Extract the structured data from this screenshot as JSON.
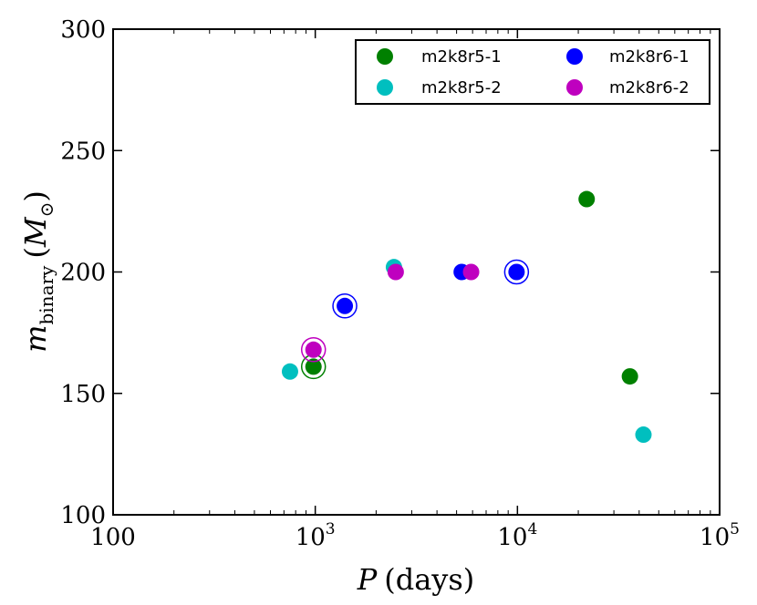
{
  "chart_data": {
    "type": "scatter",
    "xscale": "log",
    "xlim": [
      100,
      100000
    ],
    "ylim": [
      100,
      300
    ],
    "xlabel": "P (days)",
    "xlabel_main": "P",
    "xlabel_unit": "(days)",
    "ylabel": "m_binary (M_⊙)",
    "ylabel_main": "m",
    "ylabel_sub": "binary",
    "ylabel_unit_open": "(",
    "ylabel_unit_var": "M",
    "ylabel_unit_sub": "⊙",
    "ylabel_unit_close": ")",
    "x_ticks": [
      {
        "value": 100,
        "base": "100",
        "exp": ""
      },
      {
        "value": 1000,
        "base": "10",
        "exp": "3"
      },
      {
        "value": 10000,
        "base": "10",
        "exp": "4"
      },
      {
        "value": 100000,
        "base": "10",
        "exp": "5"
      }
    ],
    "y_ticks": [
      100,
      150,
      200,
      250,
      300
    ],
    "legend_position": "top-right",
    "series": [
      {
        "name": "m2k8r5-1",
        "color": "#008000",
        "points": [
          {
            "x": 980,
            "y": 161,
            "ring": true
          },
          {
            "x": 22000,
            "y": 230,
            "ring": false
          },
          {
            "x": 36000,
            "y": 157,
            "ring": false
          }
        ]
      },
      {
        "name": "m2k8r5-2",
        "color": "#00bfbf",
        "points": [
          {
            "x": 750,
            "y": 159,
            "ring": false
          },
          {
            "x": 2450,
            "y": 202,
            "ring": false
          },
          {
            "x": 42000,
            "y": 133,
            "ring": false
          }
        ]
      },
      {
        "name": "m2k8r6-1",
        "color": "#0000ff",
        "points": [
          {
            "x": 1400,
            "y": 186,
            "ring": true
          },
          {
            "x": 5300,
            "y": 200,
            "ring": false
          },
          {
            "x": 9900,
            "y": 200,
            "ring": true
          }
        ]
      },
      {
        "name": "m2k8r6-2",
        "color": "#bf00bf",
        "points": [
          {
            "x": 980,
            "y": 168,
            "ring": true
          },
          {
            "x": 2500,
            "y": 200,
            "ring": false
          },
          {
            "x": 5900,
            "y": 200,
            "ring": false
          }
        ]
      }
    ]
  }
}
